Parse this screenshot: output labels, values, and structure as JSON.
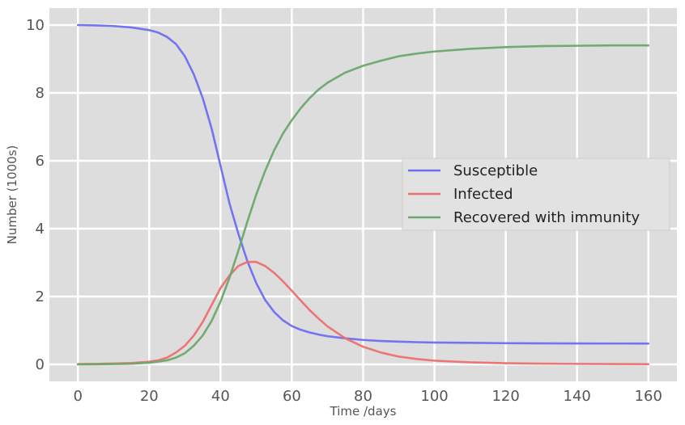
{
  "chart_data": {
    "type": "line",
    "title": "",
    "xlabel": "Time /days",
    "ylabel": "Number (1000s)",
    "xlim": [
      -8,
      168
    ],
    "ylim": [
      -0.5,
      10.5
    ],
    "xticks": [
      0,
      20,
      40,
      60,
      80,
      100,
      120,
      140,
      160
    ],
    "yticks": [
      0,
      2,
      4,
      6,
      8,
      10
    ],
    "grid": true,
    "legend_position": "center-right",
    "background_color": "#dddddd",
    "grid_color": "#ffffff",
    "x": [
      0,
      5,
      10,
      15,
      20,
      22.5,
      25,
      27.5,
      30,
      32.5,
      35,
      37.5,
      40,
      42.5,
      45,
      47.5,
      50,
      52.5,
      55,
      57.5,
      60,
      62.5,
      65,
      67.5,
      70,
      75,
      80,
      85,
      90,
      95,
      100,
      110,
      120,
      130,
      140,
      150,
      160
    ],
    "series": [
      {
        "name": "Susceptible",
        "color": "#6e6ef0",
        "values": [
          10.0,
          9.99,
          9.97,
          9.93,
          9.85,
          9.78,
          9.65,
          9.44,
          9.08,
          8.55,
          7.85,
          6.95,
          5.85,
          4.75,
          3.85,
          3.05,
          2.4,
          1.9,
          1.55,
          1.3,
          1.13,
          1.02,
          0.94,
          0.88,
          0.83,
          0.77,
          0.72,
          0.69,
          0.67,
          0.655,
          0.645,
          0.635,
          0.625,
          0.62,
          0.618,
          0.616,
          0.615
        ]
      },
      {
        "name": "Infected",
        "color": "#ec6f6f",
        "values": [
          0.01,
          0.015,
          0.025,
          0.04,
          0.08,
          0.12,
          0.2,
          0.35,
          0.55,
          0.85,
          1.25,
          1.75,
          2.25,
          2.62,
          2.9,
          3.02,
          3.02,
          2.9,
          2.7,
          2.45,
          2.17,
          1.88,
          1.6,
          1.35,
          1.12,
          0.77,
          0.52,
          0.35,
          0.23,
          0.16,
          0.11,
          0.06,
          0.035,
          0.022,
          0.015,
          0.01,
          0.007
        ]
      },
      {
        "name": "Recovered with immunity",
        "color": "#6aa86a",
        "values": [
          0.0,
          0.005,
          0.01,
          0.02,
          0.05,
          0.08,
          0.12,
          0.2,
          0.33,
          0.55,
          0.85,
          1.28,
          1.85,
          2.55,
          3.35,
          4.2,
          5.0,
          5.7,
          6.3,
          6.8,
          7.2,
          7.55,
          7.85,
          8.1,
          8.3,
          8.6,
          8.8,
          8.95,
          9.08,
          9.16,
          9.22,
          9.3,
          9.35,
          9.38,
          9.39,
          9.4,
          9.4
        ]
      }
    ]
  }
}
